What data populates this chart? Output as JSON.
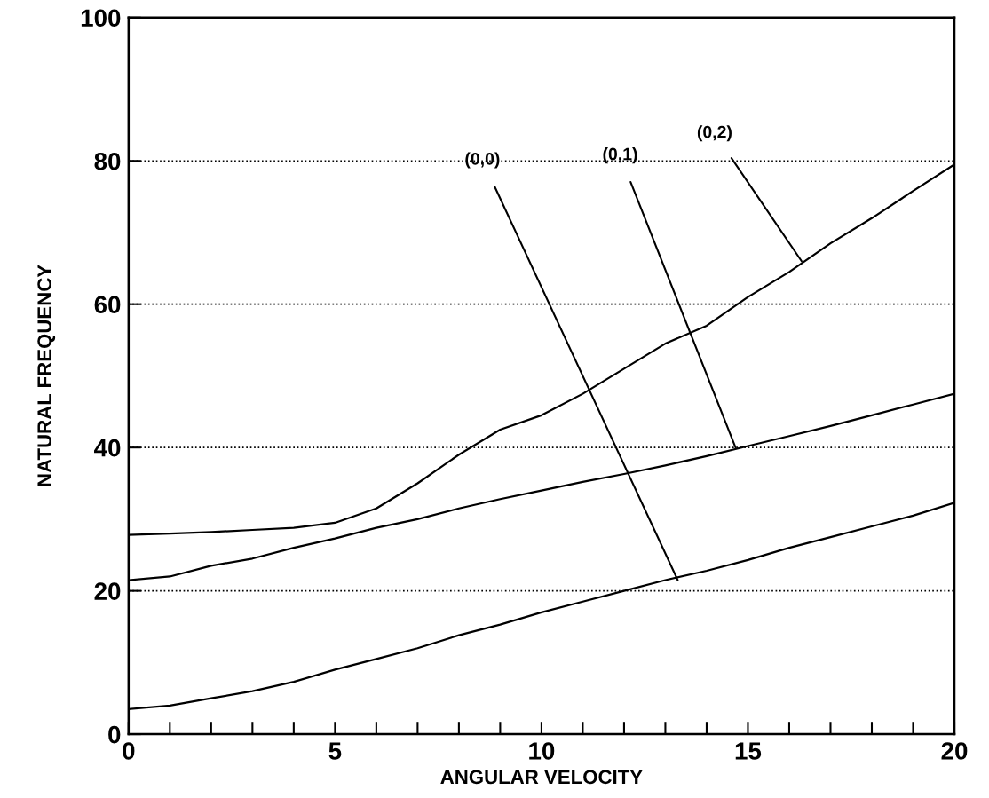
{
  "chart_data": {
    "type": "line",
    "xlabel": "ANGULAR VELOCITY",
    "ylabel": "NATURAL FREQUENCY",
    "x": [
      0,
      1,
      2,
      3,
      4,
      5,
      6,
      7,
      8,
      9,
      10,
      11,
      12,
      13,
      14,
      15,
      16,
      17,
      18,
      19,
      20
    ],
    "series": [
      {
        "color": "#000000",
        "values": [
          3.5,
          4,
          5,
          6,
          7.3,
          9,
          10.5,
          12,
          13.8,
          15.3,
          17,
          18.5,
          20,
          21.5,
          22.8,
          24.3,
          26,
          27.5,
          29,
          30.5,
          32.3
        ]
      },
      {
        "color": "#000000",
        "values": [
          21.5,
          22,
          23.5,
          24.5,
          26,
          27.3,
          28.8,
          30,
          31.5,
          32.8,
          34,
          35.2,
          36.3,
          37.5,
          38.8,
          40.2,
          41.6,
          43,
          44.5,
          46,
          47.5
        ]
      },
      {
        "color": "#000000",
        "values": [
          27.8,
          28,
          28.2,
          28.5,
          28.8,
          29.5,
          31.5,
          35,
          39,
          42.5,
          44.5,
          47.5,
          51,
          54.5,
          57,
          61,
          64.5,
          68.5,
          72,
          75.8,
          79.5
        ]
      }
    ],
    "annotations": [
      {
        "text": "(0,0)",
        "x": 13.3,
        "y": 21.5
      },
      {
        "text": "(0,1)",
        "x": 14.7,
        "y": 40
      },
      {
        "text": "(0,2)",
        "x": 16.3,
        "y": 66
      }
    ],
    "xlim": [
      0,
      20
    ],
    "ylim": [
      0,
      100
    ],
    "xticks": [
      0,
      {
        "value": 1,
        "label": null
      },
      {
        "value": 2,
        "label": null
      },
      {
        "value": 3,
        "label": null
      },
      {
        "value": 4,
        "label": null
      },
      5,
      {
        "value": 6,
        "label": null
      },
      {
        "value": 7,
        "label": null
      },
      {
        "value": 8,
        "label": null
      },
      {
        "value": 9,
        "label": null
      },
      10,
      {
        "value": 11,
        "label": null
      },
      {
        "value": 12,
        "label": null
      },
      {
        "value": 13,
        "label": null
      },
      {
        "value": 14,
        "label": null
      },
      15,
      {
        "value": 16,
        "label": null
      },
      {
        "value": 17,
        "label": null
      },
      {
        "value": 18,
        "label": null
      },
      {
        "value": 19,
        "label": null
      },
      20
    ],
    "yticks": [
      0,
      20,
      40,
      60,
      80,
      100
    ],
    "grid": "y",
    "marker": "none",
    "line_style": "solid"
  }
}
